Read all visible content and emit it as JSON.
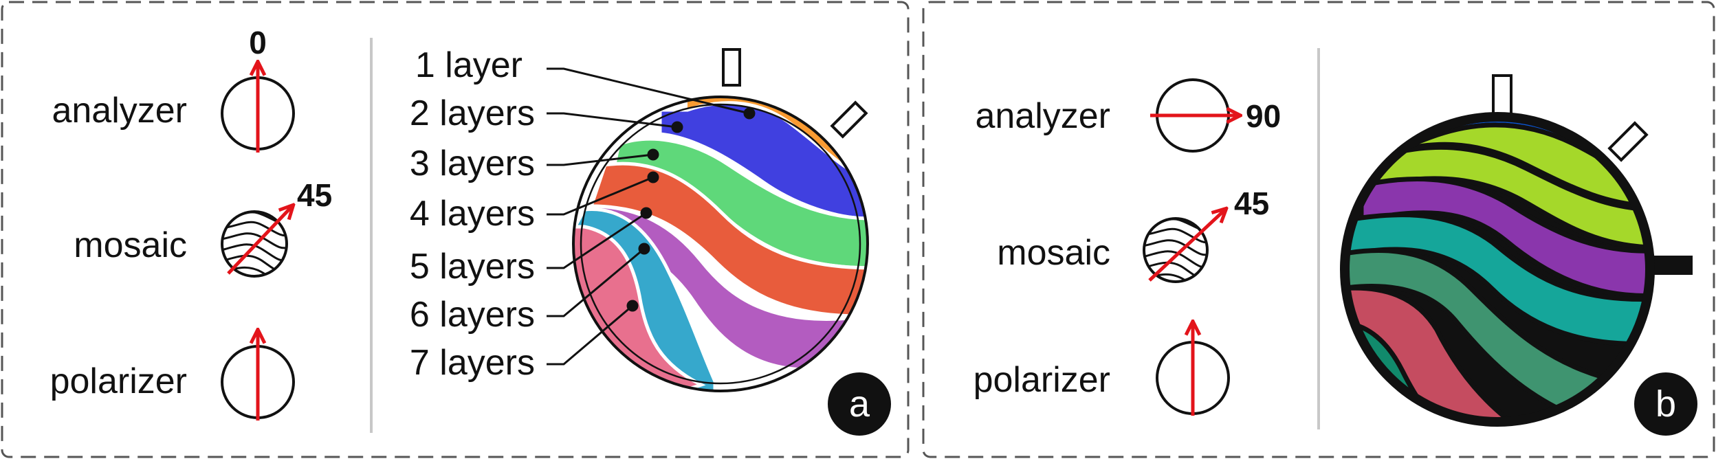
{
  "panel_a": {
    "analyzer_label": "analyzer",
    "analyzer_angle": "0",
    "mosaic_label": "mosaic",
    "mosaic_angle": "45",
    "polarizer_label": "polarizer",
    "layer_labels": [
      "1 layer",
      "2 layers",
      "3 layers",
      "4 layers",
      "5 layers",
      "6 layers",
      "7 layers"
    ],
    "badge": "a"
  },
  "panel_b": {
    "analyzer_label": "analyzer",
    "analyzer_angle": "90",
    "mosaic_label": "mosaic",
    "mosaic_angle": "45",
    "polarizer_label": "polarizer",
    "badge": "b"
  },
  "colors": {
    "arrow": "#e3141b",
    "a_bands": [
      "#f99b32",
      "#4040e0",
      "#5fd87a",
      "#e85c3c",
      "#b35cc0",
      "#36a8cc",
      "#e8708e"
    ],
    "b_bands": [
      "#0b57d8",
      "#a5d82a",
      "#8a36ac",
      "#15a69a",
      "#3f9470",
      "#c54c60",
      "#118a6c"
    ]
  }
}
